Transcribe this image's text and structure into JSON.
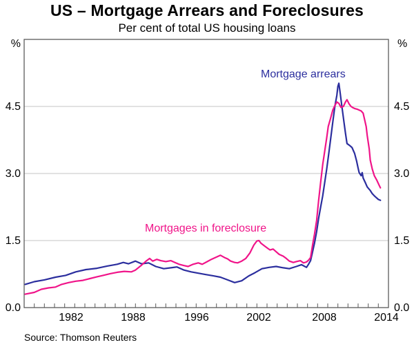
{
  "page": {
    "title": "US – Mortgage Arrears and Foreclosures",
    "subtitle": "Per cent of total US housing loans",
    "source_note": "Source: Thomson Reuters"
  },
  "axes": {
    "unit_left": "%",
    "unit_right": "%",
    "y_tick_labels": [
      "0.0",
      "1.5",
      "3.0",
      "4.5"
    ],
    "x_tick_labels": [
      "1982",
      "1988",
      "1996",
      "2002",
      "2008",
      "2014"
    ]
  },
  "chart_data": {
    "type": "line",
    "title": "US – Mortgage Arrears and Foreclosures",
    "subtitle": "Per cent of total US housing loans",
    "source": "Thomson Reuters",
    "x_range": [
      1979,
      2015
    ],
    "y_range": [
      0,
      6
    ],
    "y_gridlines": [
      1.5,
      3.0,
      4.5
    ],
    "y_ticks_labeled": [
      0.0,
      1.5,
      3.0,
      4.5
    ],
    "x_ticks_labeled": [
      1982,
      1988,
      1996,
      2002,
      2008,
      2014
    ],
    "x_minor_tick_interval_years": 1,
    "grid": "horizontal-only",
    "legend_position": "inline-annotations",
    "colors": {
      "frame": "#5a5a5a",
      "grid": "#c4c4c4",
      "text": "#000000"
    },
    "series": [
      {
        "name": "Mortgage arrears",
        "color": "#2B2E9E",
        "points": [
          [
            1979.1,
            0.52
          ],
          [
            1980.0,
            0.58
          ],
          [
            1981.0,
            0.62
          ],
          [
            1982.1,
            0.68
          ],
          [
            1983.1,
            0.72
          ],
          [
            1984.1,
            0.8
          ],
          [
            1985.1,
            0.85
          ],
          [
            1986.2,
            0.88
          ],
          [
            1987.2,
            0.93
          ],
          [
            1988.2,
            0.97
          ],
          [
            1988.8,
            1.01
          ],
          [
            1989.3,
            0.98
          ],
          [
            1990.0,
            1.04
          ],
          [
            1990.6,
            0.98
          ],
          [
            1991.3,
            1.0
          ],
          [
            1992.0,
            0.92
          ],
          [
            1992.8,
            0.87
          ],
          [
            1993.5,
            0.89
          ],
          [
            1994.1,
            0.91
          ],
          [
            1994.8,
            0.84
          ],
          [
            1995.5,
            0.8
          ],
          [
            1996.2,
            0.77
          ],
          [
            1996.9,
            0.74
          ],
          [
            1997.7,
            0.71
          ],
          [
            1998.4,
            0.68
          ],
          [
            1999.1,
            0.62
          ],
          [
            1999.8,
            0.56
          ],
          [
            2000.5,
            0.6
          ],
          [
            2001.2,
            0.71
          ],
          [
            2001.8,
            0.78
          ],
          [
            2002.5,
            0.87
          ],
          [
            2003.2,
            0.9
          ],
          [
            2003.9,
            0.92
          ],
          [
            2004.6,
            0.89
          ],
          [
            2005.2,
            0.87
          ],
          [
            2005.9,
            0.92
          ],
          [
            2006.4,
            0.96
          ],
          [
            2006.9,
            0.9
          ],
          [
            2007.1,
            0.97
          ],
          [
            2007.3,
            1.05
          ],
          [
            2007.5,
            1.25
          ],
          [
            2007.7,
            1.45
          ],
          [
            2007.9,
            1.7
          ],
          [
            2008.1,
            2.0
          ],
          [
            2008.3,
            2.25
          ],
          [
            2008.5,
            2.5
          ],
          [
            2008.7,
            2.8
          ],
          [
            2008.9,
            3.1
          ],
          [
            2009.1,
            3.45
          ],
          [
            2009.3,
            3.8
          ],
          [
            2009.5,
            4.15
          ],
          [
            2009.7,
            4.5
          ],
          [
            2009.9,
            4.75
          ],
          [
            2010.0,
            4.95
          ],
          [
            2010.1,
            5.02
          ],
          [
            2010.2,
            4.85
          ],
          [
            2010.4,
            4.5
          ],
          [
            2010.6,
            4.15
          ],
          [
            2010.75,
            3.9
          ],
          [
            2010.9,
            3.67
          ],
          [
            2011.2,
            3.62
          ],
          [
            2011.4,
            3.58
          ],
          [
            2011.65,
            3.45
          ],
          [
            2011.85,
            3.28
          ],
          [
            2012.0,
            3.12
          ],
          [
            2012.1,
            3.02
          ],
          [
            2012.3,
            2.95
          ],
          [
            2012.4,
            3.02
          ],
          [
            2012.5,
            2.9
          ],
          [
            2012.7,
            2.8
          ],
          [
            2012.9,
            2.7
          ],
          [
            2013.2,
            2.62
          ],
          [
            2013.4,
            2.55
          ],
          [
            2013.6,
            2.5
          ],
          [
            2013.8,
            2.46
          ],
          [
            2014.0,
            2.42
          ],
          [
            2014.2,
            2.4
          ]
        ]
      },
      {
        "name": "Mortgages in foreclosure",
        "color": "#F01489",
        "points": [
          [
            1979.1,
            0.3
          ],
          [
            1980.0,
            0.34
          ],
          [
            1980.7,
            0.41
          ],
          [
            1981.4,
            0.44
          ],
          [
            1982.1,
            0.46
          ],
          [
            1982.7,
            0.52
          ],
          [
            1983.4,
            0.56
          ],
          [
            1984.1,
            0.59
          ],
          [
            1984.8,
            0.61
          ],
          [
            1985.5,
            0.65
          ],
          [
            1986.2,
            0.69
          ],
          [
            1986.8,
            0.72
          ],
          [
            1987.5,
            0.76
          ],
          [
            1988.2,
            0.79
          ],
          [
            1988.9,
            0.81
          ],
          [
            1989.6,
            0.8
          ],
          [
            1990.0,
            0.84
          ],
          [
            1990.6,
            0.95
          ],
          [
            1991.1,
            1.05
          ],
          [
            1991.4,
            1.1
          ],
          [
            1991.7,
            1.04
          ],
          [
            1992.1,
            1.08
          ],
          [
            1992.5,
            1.05
          ],
          [
            1993.0,
            1.03
          ],
          [
            1993.5,
            1.05
          ],
          [
            1993.9,
            1.01
          ],
          [
            1994.3,
            0.97
          ],
          [
            1994.8,
            0.94
          ],
          [
            1995.2,
            0.92
          ],
          [
            1995.7,
            0.97
          ],
          [
            1996.2,
            1.0
          ],
          [
            1996.6,
            0.97
          ],
          [
            1997.1,
            1.03
          ],
          [
            1997.5,
            1.08
          ],
          [
            1998.1,
            1.14
          ],
          [
            1998.4,
            1.17
          ],
          [
            1998.8,
            1.12
          ],
          [
            1999.1,
            1.09
          ],
          [
            1999.4,
            1.04
          ],
          [
            1999.8,
            1.01
          ],
          [
            2000.1,
            1.0
          ],
          [
            2000.5,
            1.04
          ],
          [
            2000.9,
            1.1
          ],
          [
            2001.3,
            1.22
          ],
          [
            2001.7,
            1.4
          ],
          [
            2002.0,
            1.49
          ],
          [
            2002.2,
            1.5
          ],
          [
            2002.4,
            1.44
          ],
          [
            2002.8,
            1.37
          ],
          [
            2003.1,
            1.32
          ],
          [
            2003.3,
            1.29
          ],
          [
            2003.6,
            1.31
          ],
          [
            2003.9,
            1.25
          ],
          [
            2004.2,
            1.19
          ],
          [
            2004.6,
            1.15
          ],
          [
            2004.9,
            1.1
          ],
          [
            2005.2,
            1.04
          ],
          [
            2005.6,
            1.01
          ],
          [
            2005.9,
            1.03
          ],
          [
            2006.3,
            1.05
          ],
          [
            2006.6,
            1.0
          ],
          [
            2006.9,
            1.02
          ],
          [
            2007.1,
            1.06
          ],
          [
            2007.3,
            1.12
          ],
          [
            2007.5,
            1.4
          ],
          [
            2007.7,
            1.65
          ],
          [
            2007.9,
            1.95
          ],
          [
            2008.1,
            2.4
          ],
          [
            2008.3,
            2.8
          ],
          [
            2008.5,
            3.2
          ],
          [
            2008.7,
            3.5
          ],
          [
            2008.9,
            3.8
          ],
          [
            2009.05,
            4.05
          ],
          [
            2009.3,
            4.25
          ],
          [
            2009.5,
            4.42
          ],
          [
            2009.7,
            4.52
          ],
          [
            2009.9,
            4.6
          ],
          [
            2010.1,
            4.57
          ],
          [
            2010.3,
            4.48
          ],
          [
            2010.55,
            4.5
          ],
          [
            2010.75,
            4.6
          ],
          [
            2010.9,
            4.65
          ],
          [
            2011.1,
            4.56
          ],
          [
            2011.3,
            4.5
          ],
          [
            2011.5,
            4.47
          ],
          [
            2011.7,
            4.45
          ],
          [
            2011.9,
            4.44
          ],
          [
            2012.1,
            4.42
          ],
          [
            2012.3,
            4.4
          ],
          [
            2012.5,
            4.35
          ],
          [
            2012.65,
            4.2
          ],
          [
            2012.8,
            4.05
          ],
          [
            2012.9,
            3.85
          ],
          [
            2013.1,
            3.55
          ],
          [
            2013.2,
            3.3
          ],
          [
            2013.4,
            3.1
          ],
          [
            2013.6,
            2.95
          ],
          [
            2013.85,
            2.85
          ],
          [
            2014.05,
            2.75
          ],
          [
            2014.2,
            2.68
          ]
        ]
      }
    ]
  },
  "annotations": {
    "arrears_label": "Mortgage arrears",
    "foreclosure_label": "Mortgages in foreclosure"
  }
}
